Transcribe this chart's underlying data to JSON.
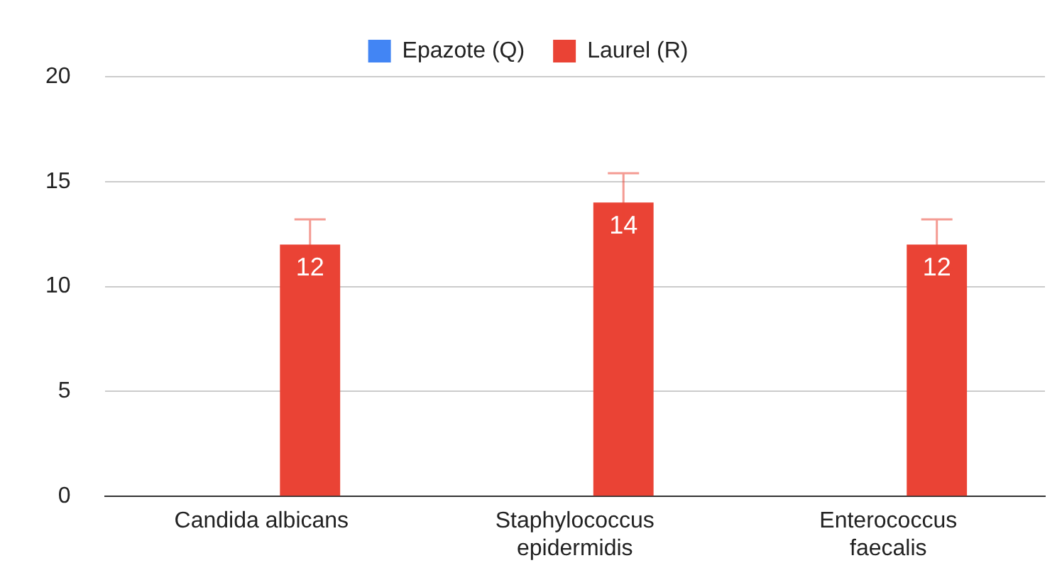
{
  "chart_data": {
    "type": "bar",
    "categories": [
      "Candida albicans",
      "Staphylococcus epidermidis",
      "Enterococcus faecalis"
    ],
    "series": [
      {
        "name": "Epazote (Q)",
        "color": "#4285f4",
        "values": [
          null,
          null,
          null
        ]
      },
      {
        "name": "Laurel (R)",
        "color": "#ea4335",
        "values": [
          12,
          14,
          12
        ],
        "errors": [
          1.2,
          1.4,
          1.2
        ]
      }
    ],
    "ylim": [
      0,
      20
    ],
    "yticks": [
      0,
      5,
      10,
      15,
      20
    ],
    "grid": "y",
    "legend": "top",
    "data_labels": true
  }
}
